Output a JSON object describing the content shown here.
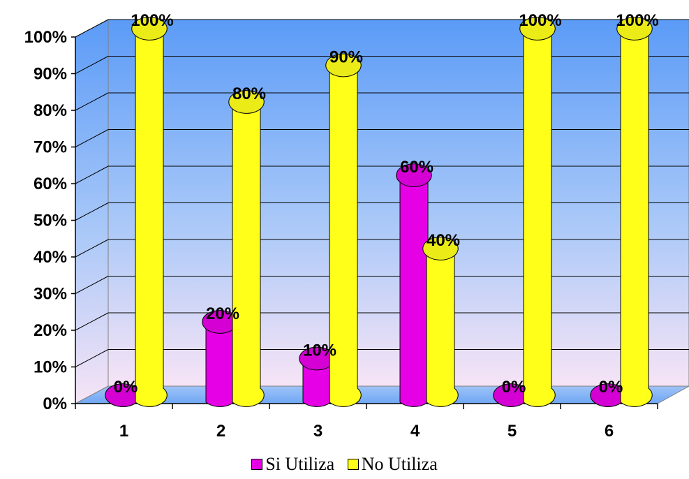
{
  "chart_data": {
    "type": "bar",
    "categories": [
      "1",
      "2",
      "3",
      "4",
      "5",
      "6"
    ],
    "series": [
      {
        "name": "Si Utiliza",
        "color": "#E600E6",
        "values": [
          0,
          20,
          10,
          60,
          0,
          0
        ],
        "labels": [
          "0%",
          "20%",
          "10%",
          "60%",
          "0%",
          "0%"
        ]
      },
      {
        "name": "No Utiliza",
        "color": "#FFFF1A",
        "values": [
          100,
          80,
          90,
          40,
          100,
          100
        ],
        "labels": [
          "100%",
          "80%",
          "90%",
          "40%",
          "100%",
          "100%"
        ]
      }
    ],
    "yticks": [
      "0%",
      "10%",
      "20%",
      "30%",
      "40%",
      "50%",
      "60%",
      "70%",
      "80%",
      "90%",
      "100%"
    ],
    "ylim": [
      0,
      100
    ],
    "grid": true,
    "legend_position": "bottom",
    "wall_colors": {
      "top": "#5B9BF7",
      "bottom": "#F7E4F6"
    }
  }
}
